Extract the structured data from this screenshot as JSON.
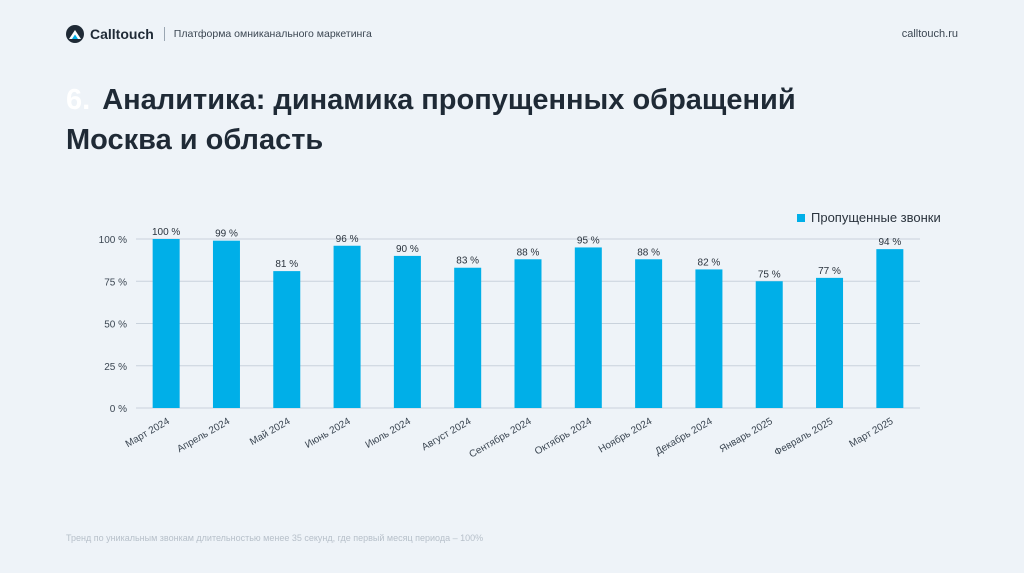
{
  "header": {
    "brand": "Calltouch",
    "tagline": "Платформа омниканального маркетинга",
    "site": "calltouch.ru"
  },
  "slide": {
    "number": "6.",
    "title": "Аналитика: динамика пропущенных обращений",
    "subtitle": "Москва и область",
    "footnote": "Тренд по  уникальным звонкам длительностью менее 35 секунд, где первый месяц периода – 100%"
  },
  "colors": {
    "bar": "#00afe8",
    "grid": "#c9d2dc",
    "text": "#1f2a36"
  },
  "chart_data": {
    "type": "bar",
    "categories": [
      "Март 2024",
      "Апрель 2024",
      "Май 2024",
      "Июнь 2024",
      "Июль 2024",
      "Август 2024",
      "Сентябрь 2024",
      "Октябрь 2024",
      "Ноябрь 2024",
      "Декабрь 2024",
      "Январь 2025",
      "Февраль 2025",
      "Март 2025"
    ],
    "series": [
      {
        "name": "Пропущенные звонки",
        "values": [
          100,
          99,
          81,
          96,
          90,
          83,
          88,
          95,
          88,
          82,
          75,
          77,
          94
        ]
      }
    ],
    "data_labels": [
      "100 %",
      "99 %",
      "81 %",
      "96 %",
      "90 %",
      "83 %",
      "88 %",
      "95 %",
      "88 %",
      "82 %",
      "75 %",
      "77 %",
      "94 %"
    ],
    "y_ticks": [
      0,
      25,
      50,
      75,
      100
    ],
    "y_tick_labels": [
      "0 %",
      "25 %",
      "50 %",
      "75 %",
      "100 %"
    ],
    "ylim": [
      0,
      100
    ],
    "grid": true,
    "legend_position": "top-right"
  }
}
